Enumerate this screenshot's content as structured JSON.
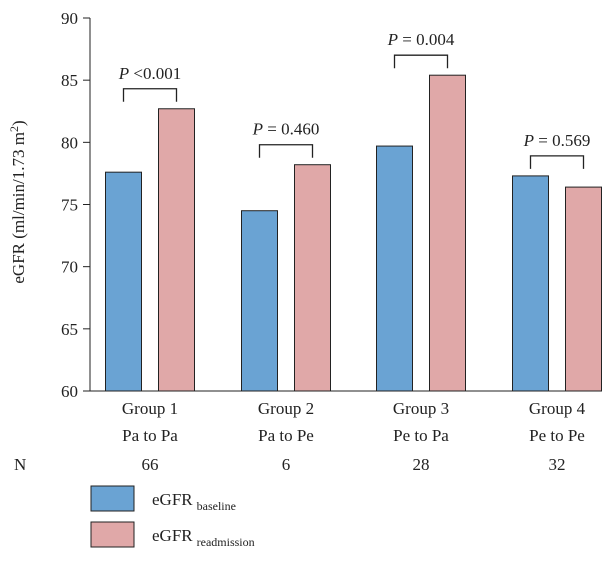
{
  "chart_data": {
    "type": "bar",
    "ylabel": "eGFR (ml/min/1.73 m",
    "ylabel_sup": "2",
    "ylabel_close": ")",
    "ylim": [
      60,
      90
    ],
    "yticks": [
      60,
      65,
      70,
      75,
      80,
      85,
      90
    ],
    "grid": false,
    "categories": [
      {
        "line1": "Group 1",
        "line2": "Pa to Pa",
        "n": "66"
      },
      {
        "line1": "Group 2",
        "line2": "Pa to Pe",
        "n": "6"
      },
      {
        "line1": "Group 3",
        "line2": "Pe to Pa",
        "n": "28"
      },
      {
        "line1": "Group 4",
        "line2": "Pe to Pe",
        "n": "32"
      }
    ],
    "n_label": "N",
    "series": [
      {
        "name": "eGFR",
        "subscript": "baseline",
        "color": "#6aa3d3",
        "values": [
          77.6,
          74.5,
          79.7,
          77.3
        ]
      },
      {
        "name": "eGFR",
        "subscript": "readmission",
        "color": "#e0a8a8",
        "values": [
          82.7,
          78.2,
          85.4,
          76.4
        ]
      }
    ],
    "annotations": [
      {
        "p_symbol": "P",
        "text": " <0.001"
      },
      {
        "p_symbol": "P",
        "text": " = 0.460"
      },
      {
        "p_symbol": "P",
        "text": " = 0.004"
      },
      {
        "p_symbol": "P",
        "text": " = 0.569"
      }
    ],
    "legend_position": "bottom-left"
  }
}
